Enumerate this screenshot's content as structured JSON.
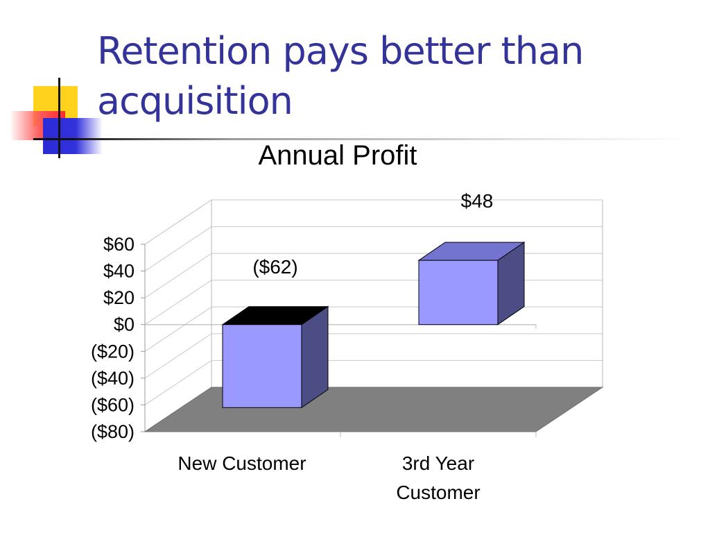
{
  "slide": {
    "title": "Retention pays better than acquisition"
  },
  "chart_data": {
    "type": "bar",
    "title": "Annual Profit",
    "categories": [
      "New Customer",
      "3rd Year Customer"
    ],
    "values": [
      -62,
      48
    ],
    "data_labels": [
      "($62)",
      "$48"
    ],
    "ylim": [
      -80,
      60
    ],
    "y_tick_values": [
      60,
      40,
      20,
      0,
      -20,
      -40,
      -60,
      -80
    ],
    "y_tick_labels": [
      "$60",
      "$40",
      "$20",
      "$0",
      "($20)",
      "($40)",
      "($60)",
      "($80)"
    ],
    "xlabel": "",
    "ylabel": "",
    "grid": true,
    "three_d": true,
    "legend": "none",
    "colors": {
      "bar_front": "#9999ff",
      "bar_side": "#4d4d85",
      "bar_top": "#7373d0",
      "bar_top_negative": "#000000",
      "floor": "#808080",
      "title_text": "#33339a",
      "accent_yellow": "#ffd21e",
      "accent_red": "#ff3333",
      "accent_blue": "#3333cc"
    }
  }
}
